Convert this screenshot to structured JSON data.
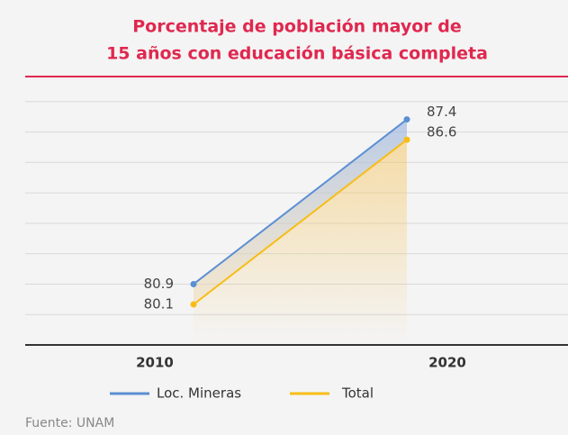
{
  "chart_data": {
    "type": "line",
    "title": [
      "Porcentaje de población mayor de",
      "15 años con educación básica completa"
    ],
    "categories": [
      "2010",
      "2020"
    ],
    "series": [
      {
        "name": "Loc. Mineras",
        "color": "#5b8fd4",
        "values": [
          80.9,
          87.4
        ]
      },
      {
        "name": "Total",
        "color": "#f7bd16",
        "values": [
          80.1,
          86.6
        ]
      }
    ],
    "ylim": [
      78.5,
      88.7
    ],
    "yticks": [
      79.7,
      80.9,
      82.1,
      83.3,
      84.5,
      85.7,
      86.9,
      88.1
    ],
    "grid": true,
    "source": "Fuente: UNAM"
  }
}
